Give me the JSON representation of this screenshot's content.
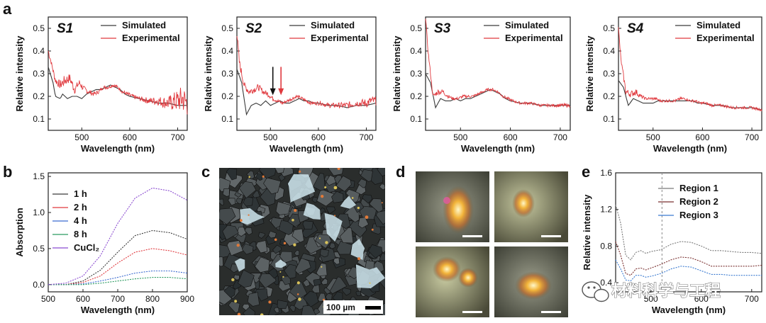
{
  "panel_labels": {
    "a": "a",
    "b": "b",
    "c": "c",
    "d": "d",
    "e": "e"
  },
  "colors": {
    "simulated": "#3a3a3a",
    "experimental": "#e0393e",
    "region1": "#7a7a7a",
    "region2": "#7a3030",
    "region3": "#3a7ad0",
    "arrow_black": "#111111",
    "arrow_red": "#e0393e"
  },
  "scale_bar": {
    "label": "100 µm"
  },
  "watermark": {
    "text": "材料科学与工程",
    "icon": "wechat-icon"
  },
  "chart_data": [
    {
      "id": "a-S1",
      "type": "line",
      "tag": "S1",
      "xlabel": "Wavelength (nm)",
      "ylabel": "Relative intensity",
      "xlim": [
        430,
        720
      ],
      "ylim": [
        0.05,
        0.55
      ],
      "xticks": [
        500,
        600,
        700
      ],
      "yticks": [
        0.1,
        0.2,
        0.3,
        0.4,
        0.5
      ],
      "legend": [
        "Simulated",
        "Experimental"
      ],
      "series": [
        {
          "name": "Simulated",
          "x": [
            430,
            440,
            445,
            455,
            460,
            470,
            480,
            490,
            500,
            510,
            520,
            530,
            540,
            550,
            560,
            570,
            580,
            590,
            600,
            620,
            640,
            660,
            680,
            700,
            720
          ],
          "y": [
            0.33,
            0.26,
            0.2,
            0.19,
            0.21,
            0.19,
            0.2,
            0.2,
            0.19,
            0.21,
            0.22,
            0.23,
            0.23,
            0.24,
            0.25,
            0.24,
            0.23,
            0.21,
            0.2,
            0.19,
            0.18,
            0.17,
            0.17,
            0.16,
            0.16
          ]
        },
        {
          "name": "Experimental",
          "x": [
            430,
            435,
            445,
            455,
            465,
            475,
            485,
            495,
            505,
            515,
            525,
            535,
            545,
            555,
            565,
            575,
            585,
            595,
            605,
            620,
            640,
            660,
            680,
            700,
            710,
            720
          ],
          "y": [
            0.4,
            0.36,
            0.27,
            0.25,
            0.27,
            0.28,
            0.23,
            0.26,
            0.23,
            0.22,
            0.21,
            0.22,
            0.24,
            0.24,
            0.25,
            0.24,
            0.22,
            0.21,
            0.2,
            0.19,
            0.18,
            0.18,
            0.17,
            0.18,
            0.19,
            0.17
          ],
          "noise": [
            0.02,
            0.01,
            0.015,
            0.02,
            0.025,
            0.02,
            0.02,
            0.015,
            0.015,
            0.012,
            0.01,
            0.008,
            0.008,
            0.008,
            0.008,
            0.008,
            0.008,
            0.01,
            0.01,
            0.01,
            0.015,
            0.02,
            0.03,
            0.05,
            0.06,
            0.06
          ]
        }
      ]
    },
    {
      "id": "a-S2",
      "type": "line",
      "tag": "S2",
      "xlabel": "Wavelength (nm)",
      "ylabel": "Relative intensity",
      "xlim": [
        430,
        720
      ],
      "ylim": [
        0.05,
        0.55
      ],
      "xticks": [
        500,
        600,
        700
      ],
      "yticks": [
        0.1,
        0.2,
        0.3,
        0.4,
        0.5
      ],
      "legend": [
        "Simulated",
        "Experimental"
      ],
      "arrows": [
        {
          "x": 505,
          "color": "black"
        },
        {
          "x": 522,
          "color": "red"
        }
      ],
      "series": [
        {
          "name": "Simulated",
          "x": [
            430,
            440,
            450,
            460,
            470,
            480,
            490,
            500,
            510,
            520,
            530,
            540,
            550,
            560,
            570,
            580,
            590,
            600,
            620,
            640,
            660,
            680,
            700,
            720
          ],
          "y": [
            0.32,
            0.26,
            0.12,
            0.16,
            0.17,
            0.16,
            0.18,
            0.16,
            0.17,
            0.18,
            0.17,
            0.17,
            0.18,
            0.19,
            0.18,
            0.18,
            0.17,
            0.17,
            0.16,
            0.16,
            0.15,
            0.16,
            0.16,
            0.17
          ]
        },
        {
          "name": "Experimental",
          "x": [
            430,
            435,
            445,
            455,
            465,
            475,
            485,
            495,
            505,
            515,
            525,
            535,
            545,
            555,
            565,
            575,
            585,
            595,
            605,
            620,
            640,
            660,
            680,
            700,
            710,
            720
          ],
          "y": [
            0.48,
            0.35,
            0.25,
            0.22,
            0.23,
            0.24,
            0.22,
            0.21,
            0.19,
            0.18,
            0.17,
            0.18,
            0.19,
            0.2,
            0.19,
            0.18,
            0.17,
            0.17,
            0.17,
            0.16,
            0.16,
            0.16,
            0.17,
            0.17,
            0.18,
            0.18
          ],
          "noise": [
            0.02,
            0.02,
            0.015,
            0.015,
            0.015,
            0.015,
            0.012,
            0.012,
            0.01,
            0.008,
            0.008,
            0.008,
            0.008,
            0.008,
            0.008,
            0.008,
            0.008,
            0.008,
            0.01,
            0.01,
            0.012,
            0.015,
            0.015,
            0.02,
            0.02,
            0.02
          ]
        }
      ]
    },
    {
      "id": "a-S3",
      "type": "line",
      "tag": "S3",
      "xlabel": "Wavelength (nm)",
      "ylabel": "Relative intensity",
      "xlim": [
        430,
        720
      ],
      "ylim": [
        0.05,
        0.55
      ],
      "xticks": [
        500,
        600,
        700
      ],
      "yticks": [
        0.1,
        0.2,
        0.3,
        0.4,
        0.5
      ],
      "legend": [
        "Simulated",
        "Experimental"
      ],
      "series": [
        {
          "name": "Simulated",
          "x": [
            430,
            440,
            450,
            460,
            470,
            480,
            490,
            500,
            510,
            520,
            530,
            540,
            550,
            560,
            570,
            580,
            590,
            600,
            620,
            640,
            660,
            680,
            700,
            720
          ],
          "y": [
            0.3,
            0.26,
            0.15,
            0.19,
            0.18,
            0.18,
            0.19,
            0.18,
            0.19,
            0.19,
            0.2,
            0.21,
            0.22,
            0.23,
            0.22,
            0.21,
            0.19,
            0.18,
            0.17,
            0.17,
            0.16,
            0.16,
            0.16,
            0.16
          ]
        },
        {
          "name": "Experimental",
          "x": [
            430,
            435,
            445,
            455,
            465,
            475,
            485,
            495,
            505,
            515,
            525,
            535,
            545,
            555,
            565,
            575,
            585,
            595,
            605,
            620,
            640,
            660,
            680,
            700,
            720
          ],
          "y": [
            0.55,
            0.4,
            0.2,
            0.22,
            0.22,
            0.2,
            0.19,
            0.19,
            0.2,
            0.2,
            0.2,
            0.21,
            0.22,
            0.23,
            0.23,
            0.22,
            0.2,
            0.19,
            0.18,
            0.17,
            0.17,
            0.16,
            0.16,
            0.16,
            0.16
          ],
          "noise": [
            0.01,
            0.01,
            0.01,
            0.012,
            0.012,
            0.008,
            0.006,
            0.006,
            0.006,
            0.006,
            0.006,
            0.006,
            0.006,
            0.006,
            0.006,
            0.006,
            0.006,
            0.006,
            0.006,
            0.006,
            0.006,
            0.006,
            0.006,
            0.008,
            0.008
          ]
        }
      ]
    },
    {
      "id": "a-S4",
      "type": "line",
      "tag": "S4",
      "xlabel": "Wavelength (nm)",
      "ylabel": "Relative intensity",
      "xlim": [
        430,
        720
      ],
      "ylim": [
        0.05,
        0.55
      ],
      "xticks": [
        500,
        600,
        700
      ],
      "yticks": [
        0.1,
        0.2,
        0.3,
        0.4,
        0.5
      ],
      "legend": [
        "Simulated",
        "Experimental"
      ],
      "series": [
        {
          "name": "Simulated",
          "x": [
            430,
            440,
            450,
            460,
            470,
            480,
            490,
            500,
            510,
            520,
            530,
            540,
            550,
            560,
            570,
            580,
            590,
            600,
            620,
            640,
            660,
            680,
            700,
            720
          ],
          "y": [
            0.27,
            0.24,
            0.16,
            0.19,
            0.18,
            0.17,
            0.17,
            0.17,
            0.18,
            0.18,
            0.18,
            0.18,
            0.18,
            0.18,
            0.18,
            0.18,
            0.17,
            0.17,
            0.16,
            0.16,
            0.15,
            0.15,
            0.15,
            0.14
          ]
        },
        {
          "name": "Experimental",
          "x": [
            430,
            435,
            445,
            455,
            465,
            475,
            485,
            495,
            505,
            515,
            525,
            535,
            545,
            555,
            565,
            575,
            585,
            595,
            605,
            620,
            640,
            660,
            680,
            700,
            720
          ],
          "y": [
            0.5,
            0.36,
            0.22,
            0.21,
            0.22,
            0.2,
            0.19,
            0.19,
            0.19,
            0.18,
            0.18,
            0.18,
            0.18,
            0.19,
            0.19,
            0.18,
            0.18,
            0.17,
            0.17,
            0.16,
            0.16,
            0.15,
            0.15,
            0.15,
            0.14
          ],
          "noise": [
            0.01,
            0.01,
            0.015,
            0.015,
            0.015,
            0.01,
            0.006,
            0.006,
            0.006,
            0.006,
            0.006,
            0.006,
            0.006,
            0.006,
            0.006,
            0.006,
            0.006,
            0.006,
            0.006,
            0.006,
            0.006,
            0.006,
            0.006,
            0.006,
            0.006
          ]
        }
      ]
    },
    {
      "id": "b",
      "type": "line",
      "xlabel": "Wavelength (nm)",
      "ylabel": "Absorption",
      "xlim": [
        500,
        900
      ],
      "ylim": [
        -0.1,
        1.55
      ],
      "xticks": [
        500,
        600,
        700,
        800,
        900
      ],
      "yticks": [
        0.0,
        0.5,
        1.0,
        1.5
      ],
      "legend": [
        "1 h",
        "2 h",
        "4 h",
        "8 h",
        "CuCl₂"
      ],
      "series": [
        {
          "name": "1 h",
          "color": "#3a3a3a",
          "x": [
            500,
            550,
            600,
            650,
            700,
            750,
            800,
            850,
            900
          ],
          "y": [
            0.0,
            0.0,
            0.05,
            0.2,
            0.45,
            0.68,
            0.75,
            0.72,
            0.63
          ]
        },
        {
          "name": "2 h",
          "color": "#e0393e",
          "x": [
            500,
            550,
            600,
            650,
            700,
            750,
            800,
            850,
            900
          ],
          "y": [
            0.0,
            0.0,
            0.03,
            0.12,
            0.3,
            0.45,
            0.5,
            0.47,
            0.41
          ]
        },
        {
          "name": "4 h",
          "color": "#3a6ad0",
          "x": [
            500,
            550,
            600,
            650,
            700,
            750,
            800,
            850,
            900
          ],
          "y": [
            0.0,
            0.0,
            0.01,
            0.05,
            0.1,
            0.16,
            0.19,
            0.19,
            0.16
          ]
        },
        {
          "name": "8 h",
          "color": "#2a9a60",
          "x": [
            500,
            550,
            600,
            650,
            700,
            750,
            800,
            850,
            900
          ],
          "y": [
            0.0,
            0.0,
            0.0,
            0.02,
            0.05,
            0.08,
            0.1,
            0.1,
            0.08
          ]
        },
        {
          "name": "CuCl₂",
          "color": "#8a4ad0",
          "x": [
            500,
            550,
            600,
            650,
            700,
            750,
            800,
            850,
            900
          ],
          "y": [
            0.0,
            0.02,
            0.12,
            0.4,
            0.85,
            1.2,
            1.34,
            1.3,
            1.17
          ]
        }
      ]
    },
    {
      "id": "e",
      "type": "line",
      "xlabel": "Wavelength (nm)",
      "ylabel": "Relative intensity",
      "xlim": [
        430,
        720
      ],
      "ylim": [
        0.3,
        1.6
      ],
      "xticks": [
        500,
        600,
        700
      ],
      "yticks": [
        0.4,
        0.8,
        1.2,
        1.6
      ],
      "vline": 522,
      "legend": [
        "Region 1",
        "Region 2",
        "Region 3"
      ],
      "series": [
        {
          "name": "Region 1",
          "color": "#7a7a7a",
          "x": [
            430,
            440,
            450,
            460,
            470,
            480,
            490,
            500,
            520,
            540,
            560,
            580,
            600,
            620,
            640,
            660,
            680,
            700,
            720
          ],
          "y": [
            1.25,
            1.05,
            0.7,
            0.65,
            0.73,
            0.75,
            0.72,
            0.74,
            0.76,
            0.82,
            0.85,
            0.84,
            0.8,
            0.75,
            0.75,
            0.74,
            0.73,
            0.73,
            0.72
          ]
        },
        {
          "name": "Region 2",
          "color": "#7a3030",
          "x": [
            430,
            440,
            450,
            460,
            470,
            480,
            490,
            500,
            520,
            540,
            560,
            580,
            600,
            620,
            640,
            660,
            680,
            700,
            720
          ],
          "y": [
            0.85,
            0.7,
            0.5,
            0.48,
            0.55,
            0.56,
            0.54,
            0.56,
            0.6,
            0.65,
            0.68,
            0.67,
            0.63,
            0.58,
            0.58,
            0.58,
            0.58,
            0.58,
            0.59
          ]
        },
        {
          "name": "Region 3",
          "color": "#3a7ad0",
          "x": [
            430,
            440,
            450,
            460,
            470,
            480,
            490,
            500,
            520,
            540,
            560,
            580,
            600,
            620,
            640,
            660,
            680,
            700,
            720
          ],
          "y": [
            0.65,
            0.55,
            0.43,
            0.42,
            0.48,
            0.48,
            0.46,
            0.47,
            0.5,
            0.55,
            0.58,
            0.57,
            0.53,
            0.49,
            0.49,
            0.48,
            0.48,
            0.48,
            0.48
          ]
        }
      ]
    }
  ]
}
